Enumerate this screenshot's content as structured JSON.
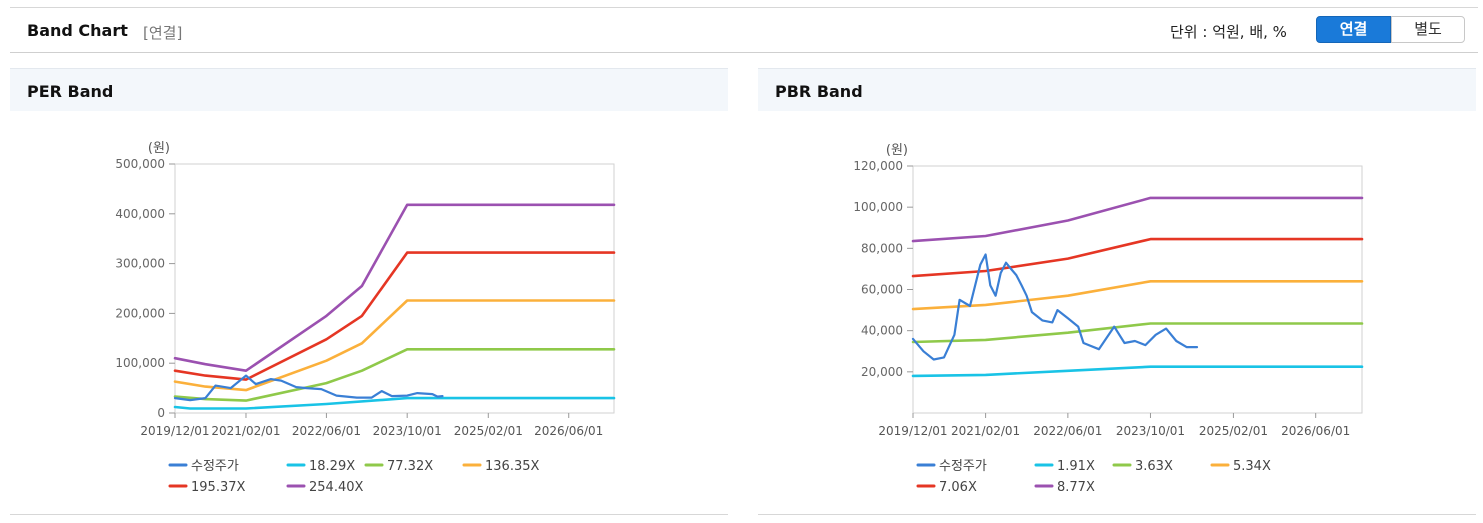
{
  "header": {
    "title": "Band Chart",
    "subtitle": "[연결]",
    "unit_label": "단위 : 억원, 배, %",
    "toggle": {
      "consolidated": "연결",
      "separate": "별도"
    }
  },
  "colors": {
    "accent": "#1a7ad9",
    "price": "#3a7fd5",
    "band1": "#19c3e6",
    "band2": "#8fc94a",
    "band3": "#fbb03b",
    "band4": "#e53624",
    "band5": "#9b51b0"
  },
  "chart_data": [
    {
      "title": "PER Band",
      "type": "line",
      "unit": "(원)",
      "y_ticks": [
        "500,000",
        "400,000",
        "300,000",
        "200,000",
        "100,000",
        "0"
      ],
      "x_ticks": [
        "2019/12/01",
        "2021/02/01",
        "2022/06/01",
        "2023/10/01",
        "2025/02/01",
        "2026/06/01"
      ],
      "ylim": [
        0,
        500000
      ],
      "grid": false,
      "legend_position": "bottom",
      "series": [
        {
          "name": "수정주가",
          "points": [
            [
              "2019/12/01",
              30000
            ],
            [
              "2020/03/01",
              26000
            ],
            [
              "2020/06/01",
              30000
            ],
            [
              "2020/08/01",
              55000
            ],
            [
              "2020/11/01",
              50000
            ],
            [
              "2021/02/01",
              75000
            ],
            [
              "2021/04/01",
              58000
            ],
            [
              "2021/07/01",
              68000
            ],
            [
              "2021/09/01",
              65000
            ],
            [
              "2021/12/01",
              52000
            ],
            [
              "2022/02/01",
              50000
            ],
            [
              "2022/05/01",
              48000
            ],
            [
              "2022/08/01",
              35000
            ],
            [
              "2022/12/01",
              31000
            ],
            [
              "2023/03/01",
              31000
            ],
            [
              "2023/05/01",
              44000
            ],
            [
              "2023/07/01",
              34000
            ],
            [
              "2023/10/01",
              35000
            ],
            [
              "2023/12/01",
              40000
            ],
            [
              "2024/03/01",
              38000
            ],
            [
              "2024/04/01",
              33000
            ],
            [
              "2024/05/01",
              34000
            ]
          ]
        },
        {
          "name": "18.29X",
          "points": [
            [
              "2019/12/01",
              12000
            ],
            [
              "2020/03/01",
              9000
            ],
            [
              "2021/02/01",
              9000
            ],
            [
              "2022/06/01",
              18000
            ],
            [
              "2023/10/01",
              30000
            ],
            [
              "2027/03/01",
              30000
            ]
          ]
        },
        {
          "name": "77.32X",
          "points": [
            [
              "2019/12/01",
              33000
            ],
            [
              "2020/06/01",
              28000
            ],
            [
              "2021/02/01",
              25000
            ],
            [
              "2022/06/01",
              60000
            ],
            [
              "2023/01/01",
              85000
            ],
            [
              "2023/10/01",
              128000
            ],
            [
              "2027/03/01",
              128000
            ]
          ]
        },
        {
          "name": "136.35X",
          "points": [
            [
              "2019/12/01",
              63000
            ],
            [
              "2020/06/01",
              53000
            ],
            [
              "2021/02/01",
              46000
            ],
            [
              "2022/06/01",
              105000
            ],
            [
              "2023/01/01",
              140000
            ],
            [
              "2023/10/01",
              226000
            ],
            [
              "2027/03/01",
              226000
            ]
          ]
        },
        {
          "name": "195.37X",
          "points": [
            [
              "2019/12/01",
              85000
            ],
            [
              "2020/06/01",
              75000
            ],
            [
              "2021/02/01",
              67000
            ],
            [
              "2022/06/01",
              148000
            ],
            [
              "2023/01/01",
              195000
            ],
            [
              "2023/10/01",
              322000
            ],
            [
              "2027/03/01",
              322000
            ]
          ]
        },
        {
          "name": "254.40X",
          "points": [
            [
              "2019/12/01",
              110000
            ],
            [
              "2020/06/01",
              98000
            ],
            [
              "2021/02/01",
              85000
            ],
            [
              "2022/06/01",
              195000
            ],
            [
              "2023/01/01",
              255000
            ],
            [
              "2023/10/01",
              418000
            ],
            [
              "2027/03/01",
              418000
            ]
          ]
        }
      ]
    },
    {
      "title": "PBR Band",
      "type": "line",
      "unit": "(원)",
      "y_ticks": [
        "120,000",
        "100,000",
        "80,000",
        "60,000",
        "40,000",
        "20,000"
      ],
      "x_ticks": [
        "2019/12/01",
        "2021/02/01",
        "2022/06/01",
        "2023/10/01",
        "2025/02/01",
        "2026/06/01"
      ],
      "ylim": [
        0,
        120000
      ],
      "grid": false,
      "legend_position": "bottom",
      "series": [
        {
          "name": "수정주가",
          "points": [
            [
              "2019/12/01",
              36000
            ],
            [
              "2020/02/01",
              30000
            ],
            [
              "2020/04/01",
              26000
            ],
            [
              "2020/06/01",
              27000
            ],
            [
              "2020/08/01",
              38000
            ],
            [
              "2020/09/01",
              55000
            ],
            [
              "2020/11/01",
              52000
            ],
            [
              "2021/01/01",
              72000
            ],
            [
              "2021/02/01",
              77000
            ],
            [
              "2021/03/01",
              62000
            ],
            [
              "2021/04/01",
              57000
            ],
            [
              "2021/05/01",
              68000
            ],
            [
              "2021/06/01",
              73000
            ],
            [
              "2021/07/01",
              70000
            ],
            [
              "2021/08/01",
              67000
            ],
            [
              "2021/09/01",
              62000
            ],
            [
              "2021/10/01",
              57000
            ],
            [
              "2021/11/01",
              49000
            ],
            [
              "2022/01/01",
              45000
            ],
            [
              "2022/03/01",
              44000
            ],
            [
              "2022/04/01",
              50000
            ],
            [
              "2022/06/01",
              46000
            ],
            [
              "2022/08/01",
              42000
            ],
            [
              "2022/09/01",
              34000
            ],
            [
              "2022/12/01",
              31000
            ],
            [
              "2023/03/01",
              42000
            ],
            [
              "2023/05/01",
              34000
            ],
            [
              "2023/07/01",
              35000
            ],
            [
              "2023/09/01",
              33000
            ],
            [
              "2023/11/01",
              38000
            ],
            [
              "2024/01/01",
              41000
            ],
            [
              "2024/03/01",
              35000
            ],
            [
              "2024/05/01",
              32000
            ],
            [
              "2024/07/01",
              32000
            ]
          ]
        },
        {
          "name": "1.91X",
          "points": [
            [
              "2019/12/01",
              18000
            ],
            [
              "2021/02/01",
              18500
            ],
            [
              "2022/06/01",
              20500
            ],
            [
              "2023/10/01",
              22500
            ],
            [
              "2027/03/01",
              22500
            ]
          ]
        },
        {
          "name": "3.63X",
          "points": [
            [
              "2019/12/01",
              34500
            ],
            [
              "2021/02/01",
              35500
            ],
            [
              "2022/06/01",
              39000
            ],
            [
              "2023/10/01",
              43500
            ],
            [
              "2027/03/01",
              43500
            ]
          ]
        },
        {
          "name": "5.34X",
          "points": [
            [
              "2019/12/01",
              50500
            ],
            [
              "2021/02/01",
              52500
            ],
            [
              "2022/06/01",
              57000
            ],
            [
              "2023/10/01",
              64000
            ],
            [
              "2027/03/01",
              64000
            ]
          ]
        },
        {
          "name": "7.06X",
          "points": [
            [
              "2019/12/01",
              66500
            ],
            [
              "2021/02/01",
              69000
            ],
            [
              "2022/06/01",
              75000
            ],
            [
              "2023/10/01",
              84500
            ],
            [
              "2027/03/01",
              84500
            ]
          ]
        },
        {
          "name": "8.77X",
          "points": [
            [
              "2019/12/01",
              83500
            ],
            [
              "2021/02/01",
              86000
            ],
            [
              "2022/06/01",
              93500
            ],
            [
              "2023/10/01",
              104500
            ],
            [
              "2027/03/01",
              104500
            ]
          ]
        }
      ]
    }
  ]
}
